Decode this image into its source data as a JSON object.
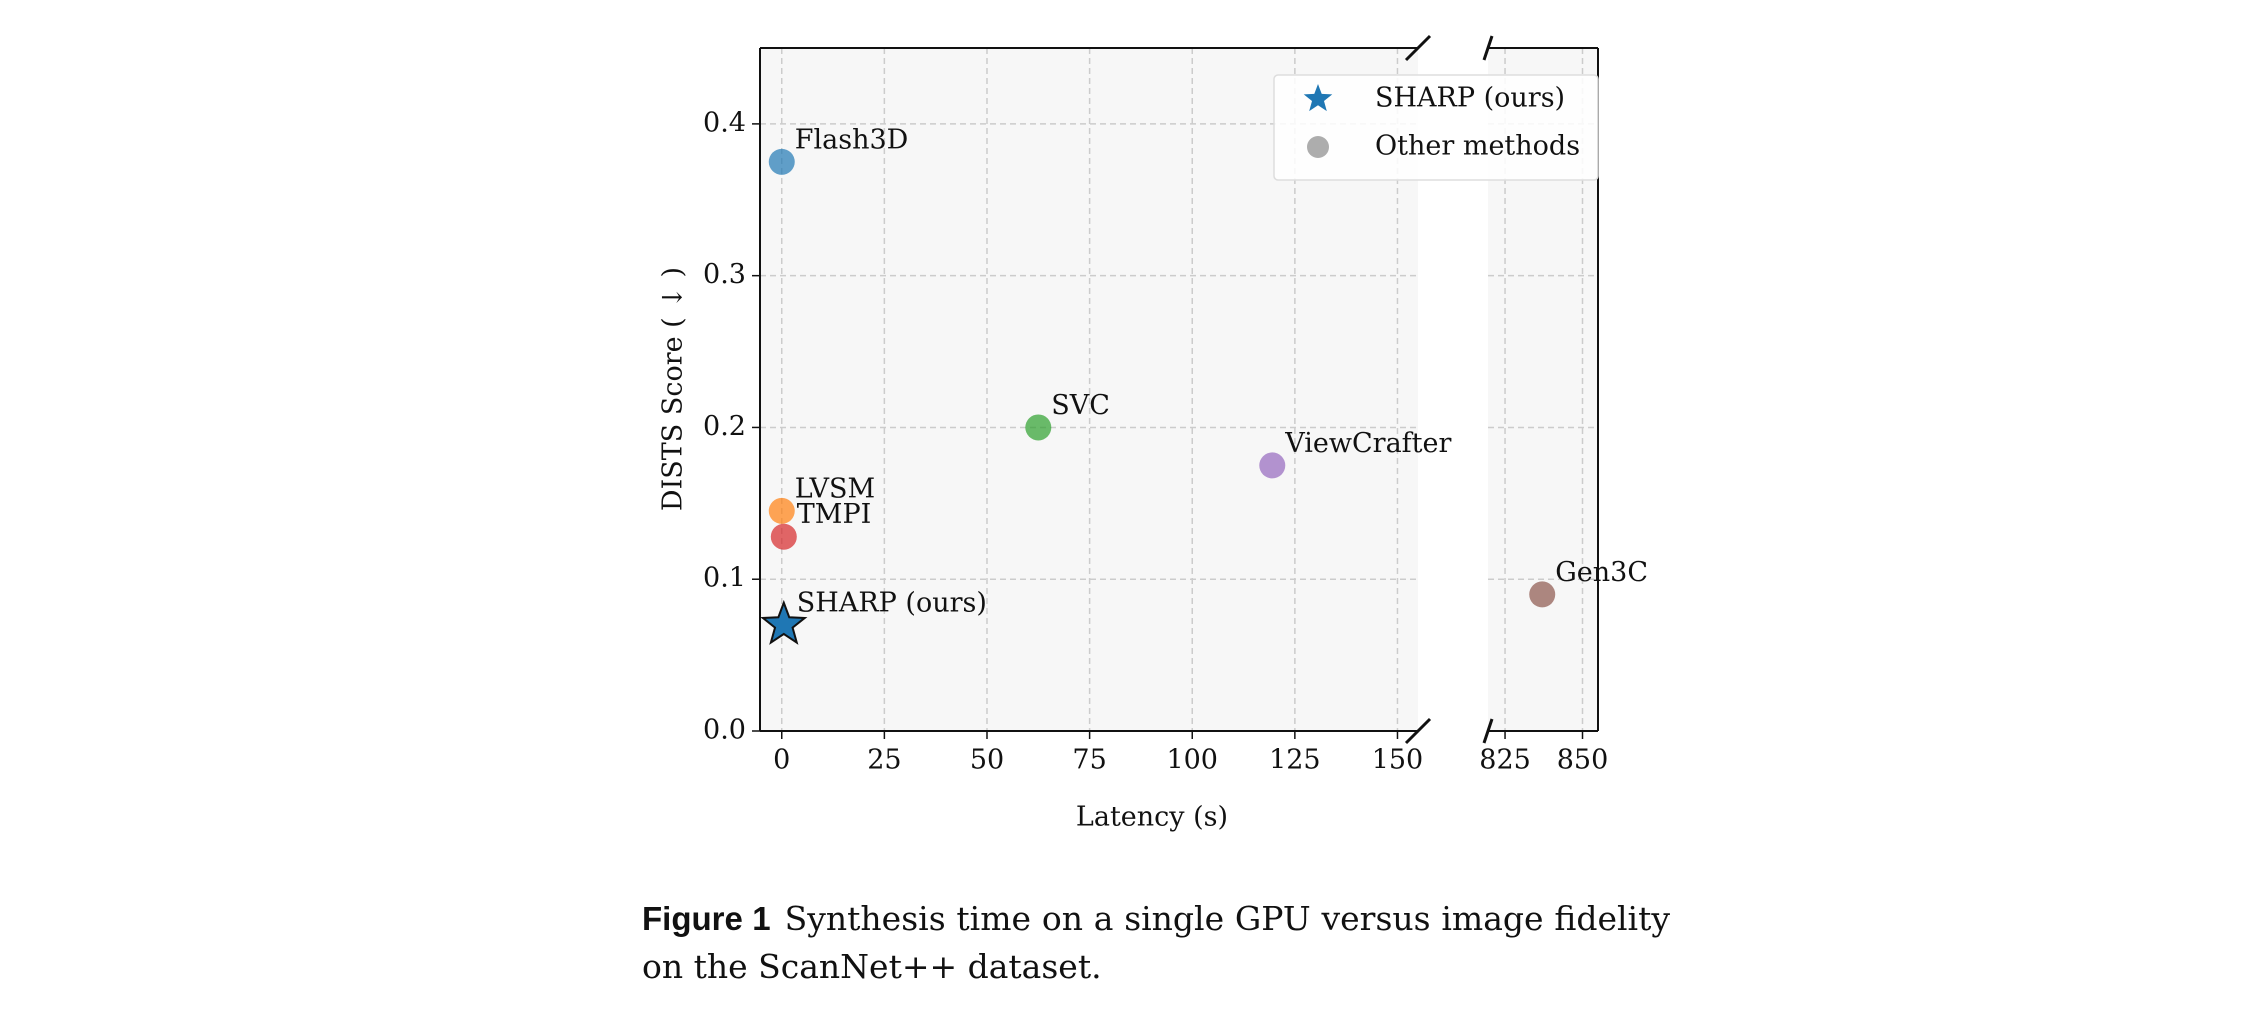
{
  "chart_data": [
    {
      "type": "scatter",
      "ylabel": "DISTS Score ( ↓ )",
      "xlabel": "Latency (s)",
      "xlim": [
        -5.3,
        155
      ],
      "xticks": [
        0,
        25,
        50,
        75,
        100,
        125,
        150
      ],
      "ylim": [
        0,
        0.45
      ],
      "yticks": [
        0.0,
        0.1,
        0.2,
        0.3,
        0.4
      ],
      "grid": true,
      "points": [
        {
          "label": "Flash3D",
          "x": 0,
          "y": 0.375,
          "color": "#1f77b4",
          "marker": "circle"
        },
        {
          "label": "LVSM",
          "x": 0,
          "y": 0.145,
          "color": "#ff7f0e",
          "marker": "circle"
        },
        {
          "label": "TMPI",
          "x": 0.5,
          "y": 0.128,
          "color": "#d62728",
          "marker": "circle"
        },
        {
          "label": "SVC",
          "x": 62.5,
          "y": 0.2,
          "color": "#2ca02c",
          "marker": "circle"
        },
        {
          "label": "ViewCrafter",
          "x": 119.5,
          "y": 0.175,
          "color": "#9467bd",
          "marker": "circle"
        },
        {
          "label": "SHARP (ours)",
          "x": 0.5,
          "y": 0.07,
          "color": "#1f77b4",
          "marker": "star"
        }
      ]
    },
    {
      "type": "scatter",
      "xlim": [
        819.5,
        855
      ],
      "xticks": [
        825,
        850
      ],
      "ylim": [
        0,
        0.45
      ],
      "yticks": [
        0.0,
        0.1,
        0.2,
        0.3,
        0.4
      ],
      "grid": true,
      "legend_position": "upper right",
      "legend": [
        {
          "name": "SHARP (ours)",
          "color": "#1f77b4",
          "marker": "star"
        },
        {
          "name": "Other methods",
          "color": "#999999",
          "marker": "circle"
        }
      ],
      "points": [
        {
          "label": "Gen3C",
          "x": 837,
          "y": 0.09,
          "color": "#8c564b",
          "marker": "circle"
        }
      ]
    }
  ],
  "caption": {
    "label": "Figure 1",
    "text": "Synthesis time on a single GPU versus image fidelity on the ScanNet++ dataset."
  }
}
